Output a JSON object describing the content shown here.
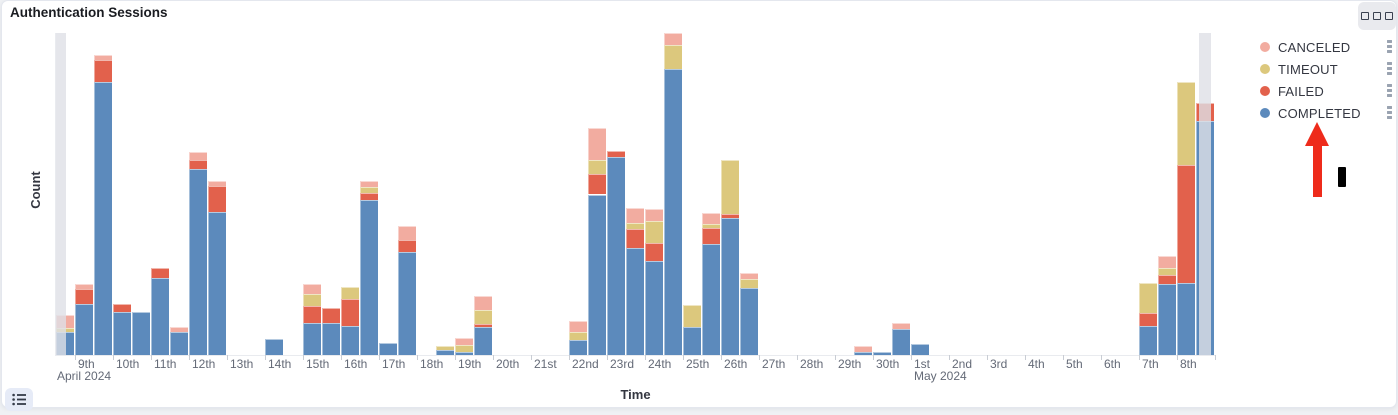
{
  "panel": {
    "title": "Authentication Sessions",
    "options_icon": "boxes-horizontal",
    "legend_toggle_icon": "list"
  },
  "legend": {
    "position": "right",
    "action_icon": "boxes-vertical",
    "items": [
      {
        "label": "CANCELED",
        "color": "#F2ACA0"
      },
      {
        "label": "TIMEOUT",
        "color": "#DCC87D"
      },
      {
        "label": "FAILED",
        "color": "#E2614C"
      },
      {
        "label": "COMPLETED",
        "color": "#5C8ABC"
      }
    ]
  },
  "annotations": {
    "arrow": {
      "shape": "up-arrow",
      "color": "#EE2B1B",
      "points_to": "COMPLETED legend item"
    },
    "black_mark": {
      "shape": "vertical-bar",
      "color": "#000000"
    }
  },
  "chart_data": {
    "type": "bar",
    "stacked": true,
    "title": "Authentication Sessions",
    "xlabel": "Time",
    "ylabel": "Count",
    "x_start": "2024-04-08 12:00",
    "x_end": "2024-05-09 00:00",
    "bucket_interval": "12h",
    "grid": false,
    "legend_position": "right",
    "y_axis_tick_labels": "none shown (values below are relative, estimated from bar heights)",
    "ylim": [
      0,
      321
    ],
    "day_ticks": [
      "9th",
      "10th",
      "11th",
      "12th",
      "13th",
      "14th",
      "15th",
      "16th",
      "17th",
      "18th",
      "19th",
      "20th",
      "21st",
      "22nd",
      "23rd",
      "24th",
      "25th",
      "26th",
      "27th",
      "28th",
      "29th",
      "30th",
      "1st",
      "2nd",
      "3rd",
      "4th",
      "5th",
      "6th",
      "7th",
      "8th",
      ""
    ],
    "month_labels": [
      {
        "text": "April 2024",
        "under_tick": "9th"
      },
      {
        "text": "May 2024",
        "under_tick": "1st"
      }
    ],
    "stack_order_bottom_to_top": [
      "COMPLETED",
      "FAILED",
      "TIMEOUT",
      "CANCELED"
    ],
    "partial_bucket_markers": {
      "color": "#DFE0E6",
      "first_bucket": true,
      "last_bucket": true
    },
    "series": [
      {
        "name": "COMPLETED",
        "color": "#5C8ABC",
        "values": [
          23,
          51,
          272,
          43,
          43,
          77,
          23,
          185,
          143,
          0,
          0,
          16,
          0,
          32,
          32,
          29,
          155,
          12,
          103,
          0,
          5,
          3,
          28,
          0,
          0,
          0,
          0,
          15,
          160,
          197,
          107,
          94,
          285,
          28,
          111,
          137,
          67,
          0,
          0,
          0,
          0,
          0,
          3,
          3,
          26,
          11,
          0,
          0,
          0,
          0,
          0,
          0,
          0,
          0,
          0,
          0,
          0,
          29,
          71,
          72,
          233
        ]
      },
      {
        "name": "FAILED",
        "color": "#E2614C",
        "values": [
          0,
          15,
          22,
          8,
          0,
          10,
          0,
          9,
          25,
          0,
          0,
          0,
          0,
          17,
          15,
          27,
          6,
          0,
          12,
          0,
          0,
          0,
          3,
          0,
          0,
          0,
          0,
          0,
          20,
          6,
          19,
          18,
          0,
          0,
          16,
          4,
          0,
          0,
          0,
          0,
          0,
          0,
          0,
          0,
          0,
          0,
          0,
          0,
          0,
          0,
          0,
          0,
          0,
          0,
          0,
          0,
          0,
          13,
          9,
          117,
          18
        ]
      },
      {
        "name": "TIMEOUT",
        "color": "#DCC87D",
        "values": [
          4,
          0,
          0,
          0,
          0,
          0,
          0,
          0,
          0,
          0,
          0,
          0,
          0,
          12,
          0,
          12,
          6,
          0,
          0,
          0,
          4,
          7,
          14,
          0,
          0,
          0,
          0,
          8,
          14,
          0,
          6,
          22,
          24,
          22,
          4,
          53,
          9,
          0,
          0,
          0,
          0,
          0,
          0,
          0,
          0,
          0,
          0,
          0,
          0,
          0,
          0,
          0,
          0,
          0,
          0,
          0,
          0,
          30,
          7,
          83,
          0
        ]
      },
      {
        "name": "CANCELED",
        "color": "#F2ACA0",
        "values": [
          13,
          5,
          5,
          0,
          0,
          0,
          5,
          8,
          5,
          0,
          0,
          0,
          0,
          10,
          0,
          0,
          6,
          0,
          14,
          0,
          0,
          7,
          14,
          0,
          0,
          0,
          0,
          11,
          32,
          0,
          15,
          12,
          12,
          0,
          11,
          0,
          6,
          0,
          0,
          0,
          0,
          0,
          6,
          0,
          6,
          0,
          0,
          0,
          0,
          0,
          0,
          0,
          0,
          0,
          0,
          0,
          0,
          0,
          12,
          0,
          0
        ]
      }
    ]
  }
}
